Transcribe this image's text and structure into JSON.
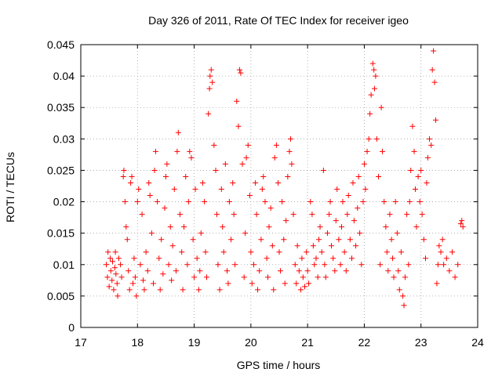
{
  "chart_data": {
    "type": "scatter",
    "title": "Day 326 of 2011, Rate Of TEC Index for receiver igeo",
    "xlabel": "GPS time / hours",
    "ylabel": "ROTI / TECUs",
    "xlim": [
      17,
      24
    ],
    "ylim": [
      0,
      0.045
    ],
    "xticks": [
      "17",
      "18",
      "19",
      "20",
      "21",
      "22",
      "23",
      "24"
    ],
    "yticks": [
      "0",
      "0.005",
      "0.01",
      "0.015",
      "0.02",
      "0.025",
      "0.03",
      "0.035",
      "0.04",
      "0.045"
    ],
    "grid": true,
    "marker": "plus",
    "series_color": "#ff0000",
    "points": [
      [
        17.45,
        0.01
      ],
      [
        17.47,
        0.008
      ],
      [
        17.48,
        0.012
      ],
      [
        17.5,
        0.0065
      ],
      [
        17.52,
        0.011
      ],
      [
        17.53,
        0.009
      ],
      [
        17.55,
        0.0075
      ],
      [
        17.56,
        0.0105
      ],
      [
        17.58,
        0.006
      ],
      [
        17.6,
        0.0095
      ],
      [
        17.61,
        0.012
      ],
      [
        17.62,
        0.0085
      ],
      [
        17.64,
        0.007
      ],
      [
        17.65,
        0.005
      ],
      [
        17.67,
        0.011
      ],
      [
        17.7,
        0.01
      ],
      [
        17.72,
        0.008
      ],
      [
        17.75,
        0.024
      ],
      [
        17.76,
        0.025
      ],
      [
        17.78,
        0.02
      ],
      [
        17.8,
        0.016
      ],
      [
        17.82,
        0.014
      ],
      [
        17.84,
        0.009
      ],
      [
        17.86,
        0.006
      ],
      [
        17.88,
        0.023
      ],
      [
        17.9,
        0.024
      ],
      [
        17.92,
        0.007
      ],
      [
        17.94,
        0.011
      ],
      [
        17.96,
        0.008
      ],
      [
        17.98,
        0.005
      ],
      [
        18.0,
        0.02
      ],
      [
        18.02,
        0.022
      ],
      [
        18.05,
        0.01
      ],
      [
        18.08,
        0.018
      ],
      [
        18.1,
        0.0075
      ],
      [
        18.12,
        0.006
      ],
      [
        18.15,
        0.012
      ],
      [
        18.18,
        0.009
      ],
      [
        18.2,
        0.023
      ],
      [
        18.22,
        0.021
      ],
      [
        18.25,
        0.015
      ],
      [
        18.28,
        0.007
      ],
      [
        18.3,
        0.025
      ],
      [
        18.32,
        0.028
      ],
      [
        18.35,
        0.02
      ],
      [
        18.38,
        0.011
      ],
      [
        18.4,
        0.006
      ],
      [
        18.42,
        0.014
      ],
      [
        18.45,
        0.0085
      ],
      [
        18.48,
        0.019
      ],
      [
        18.5,
        0.024
      ],
      [
        18.52,
        0.026
      ],
      [
        18.55,
        0.01
      ],
      [
        18.58,
        0.016
      ],
      [
        18.6,
        0.0075
      ],
      [
        18.62,
        0.013
      ],
      [
        18.65,
        0.022
      ],
      [
        18.68,
        0.009
      ],
      [
        18.7,
        0.028
      ],
      [
        18.72,
        0.031
      ],
      [
        18.75,
        0.018
      ],
      [
        18.78,
        0.012
      ],
      [
        18.8,
        0.006
      ],
      [
        18.82,
        0.016
      ],
      [
        18.85,
        0.024
      ],
      [
        18.88,
        0.01
      ],
      [
        18.9,
        0.02
      ],
      [
        18.92,
        0.028
      ],
      [
        18.95,
        0.027
      ],
      [
        18.98,
        0.014
      ],
      [
        19.0,
        0.008
      ],
      [
        19.02,
        0.022
      ],
      [
        19.05,
        0.011
      ],
      [
        19.08,
        0.006
      ],
      [
        19.1,
        0.009
      ],
      [
        19.12,
        0.015
      ],
      [
        19.15,
        0.023
      ],
      [
        19.18,
        0.02
      ],
      [
        19.2,
        0.012
      ],
      [
        19.22,
        0.008
      ],
      [
        19.25,
        0.034
      ],
      [
        19.27,
        0.038
      ],
      [
        19.28,
        0.04
      ],
      [
        19.3,
        0.041
      ],
      [
        19.32,
        0.039
      ],
      [
        19.35,
        0.029
      ],
      [
        19.38,
        0.025
      ],
      [
        19.4,
        0.018
      ],
      [
        19.42,
        0.01
      ],
      [
        19.45,
        0.006
      ],
      [
        19.48,
        0.022
      ],
      [
        19.5,
        0.016
      ],
      [
        19.52,
        0.012
      ],
      [
        19.55,
        0.026
      ],
      [
        19.58,
        0.009
      ],
      [
        19.6,
        0.007
      ],
      [
        19.62,
        0.02
      ],
      [
        19.65,
        0.014
      ],
      [
        19.68,
        0.023
      ],
      [
        19.7,
        0.018
      ],
      [
        19.72,
        0.01
      ],
      [
        19.75,
        0.036
      ],
      [
        19.78,
        0.032
      ],
      [
        19.8,
        0.041
      ],
      [
        19.82,
        0.0405
      ],
      [
        19.85,
        0.026
      ],
      [
        19.88,
        0.008
      ],
      [
        19.9,
        0.015
      ],
      [
        19.92,
        0.027
      ],
      [
        19.95,
        0.029
      ],
      [
        19.98,
        0.021
      ],
      [
        20.0,
        0.012
      ],
      [
        20.02,
        0.007
      ],
      [
        20.05,
        0.01
      ],
      [
        20.08,
        0.023
      ],
      [
        20.1,
        0.018
      ],
      [
        20.12,
        0.006
      ],
      [
        20.15,
        0.009
      ],
      [
        20.18,
        0.014
      ],
      [
        20.2,
        0.022
      ],
      [
        20.22,
        0.024
      ],
      [
        20.25,
        0.02
      ],
      [
        20.28,
        0.011
      ],
      [
        20.3,
        0.008
      ],
      [
        20.32,
        0.016
      ],
      [
        20.35,
        0.019
      ],
      [
        20.38,
        0.013
      ],
      [
        20.4,
        0.006
      ],
      [
        20.42,
        0.027
      ],
      [
        20.45,
        0.029
      ],
      [
        20.48,
        0.023
      ],
      [
        20.5,
        0.012
      ],
      [
        20.52,
        0.009
      ],
      [
        20.55,
        0.02
      ],
      [
        20.58,
        0.014
      ],
      [
        20.6,
        0.007
      ],
      [
        20.62,
        0.017
      ],
      [
        20.65,
        0.024
      ],
      [
        20.68,
        0.028
      ],
      [
        20.7,
        0.03
      ],
      [
        20.72,
        0.026
      ],
      [
        20.75,
        0.018
      ],
      [
        20.78,
        0.01
      ],
      [
        20.8,
        0.007
      ],
      [
        20.82,
        0.013
      ],
      [
        20.85,
        0.009
      ],
      [
        20.88,
        0.006
      ],
      [
        20.9,
        0.011
      ],
      [
        20.92,
        0.008
      ],
      [
        20.95,
        0.0065
      ],
      [
        20.98,
        0.012
      ],
      [
        21.0,
        0.009
      ],
      [
        21.02,
        0.007
      ],
      [
        21.05,
        0.02
      ],
      [
        21.08,
        0.018
      ],
      [
        21.1,
        0.013
      ],
      [
        21.12,
        0.01
      ],
      [
        21.15,
        0.011
      ],
      [
        21.18,
        0.008
      ],
      [
        21.2,
        0.014
      ],
      [
        21.22,
        0.016
      ],
      [
        21.25,
        0.012
      ],
      [
        21.28,
        0.025
      ],
      [
        21.3,
        0.01
      ],
      [
        21.32,
        0.008
      ],
      [
        21.35,
        0.015
      ],
      [
        21.38,
        0.018
      ],
      [
        21.4,
        0.02
      ],
      [
        21.42,
        0.013
      ],
      [
        21.45,
        0.011
      ],
      [
        21.48,
        0.009
      ],
      [
        21.5,
        0.017
      ],
      [
        21.52,
        0.022
      ],
      [
        21.55,
        0.014
      ],
      [
        21.58,
        0.01
      ],
      [
        21.6,
        0.016
      ],
      [
        21.62,
        0.02
      ],
      [
        21.65,
        0.012
      ],
      [
        21.68,
        0.009
      ],
      [
        21.7,
        0.018
      ],
      [
        21.72,
        0.021
      ],
      [
        21.75,
        0.014
      ],
      [
        21.78,
        0.011
      ],
      [
        21.8,
        0.023
      ],
      [
        21.82,
        0.017
      ],
      [
        21.85,
        0.013
      ],
      [
        21.88,
        0.019
      ],
      [
        21.9,
        0.024
      ],
      [
        21.92,
        0.015
      ],
      [
        21.95,
        0.01
      ],
      [
        21.98,
        0.02
      ],
      [
        22.0,
        0.026
      ],
      [
        22.02,
        0.022
      ],
      [
        22.05,
        0.028
      ],
      [
        22.08,
        0.03
      ],
      [
        22.1,
        0.034
      ],
      [
        22.12,
        0.037
      ],
      [
        22.15,
        0.042
      ],
      [
        22.17,
        0.041
      ],
      [
        22.18,
        0.038
      ],
      [
        22.2,
        0.04
      ],
      [
        22.22,
        0.03
      ],
      [
        22.25,
        0.024
      ],
      [
        22.28,
        0.01
      ],
      [
        22.3,
        0.035
      ],
      [
        22.32,
        0.028
      ],
      [
        22.35,
        0.02
      ],
      [
        22.38,
        0.016
      ],
      [
        22.4,
        0.012
      ],
      [
        22.42,
        0.009
      ],
      [
        22.45,
        0.018
      ],
      [
        22.48,
        0.014
      ],
      [
        22.5,
        0.011
      ],
      [
        22.52,
        0.008
      ],
      [
        22.55,
        0.02
      ],
      [
        22.58,
        0.015
      ],
      [
        22.6,
        0.009
      ],
      [
        22.62,
        0.006
      ],
      [
        22.65,
        0.012
      ],
      [
        22.68,
        0.005
      ],
      [
        22.7,
        0.0035
      ],
      [
        22.72,
        0.008
      ],
      [
        22.75,
        0.018
      ],
      [
        22.78,
        0.01
      ],
      [
        22.8,
        0.02
      ],
      [
        22.82,
        0.025
      ],
      [
        22.85,
        0.032
      ],
      [
        22.88,
        0.028
      ],
      [
        22.9,
        0.022
      ],
      [
        22.92,
        0.016
      ],
      [
        22.95,
        0.024
      ],
      [
        22.98,
        0.02
      ],
      [
        23.0,
        0.025
      ],
      [
        23.02,
        0.018
      ],
      [
        23.05,
        0.014
      ],
      [
        23.08,
        0.011
      ],
      [
        23.1,
        0.023
      ],
      [
        23.12,
        0.027
      ],
      [
        23.15,
        0.03
      ],
      [
        23.18,
        0.029
      ],
      [
        23.2,
        0.041
      ],
      [
        23.22,
        0.044
      ],
      [
        23.24,
        0.039
      ],
      [
        23.26,
        0.033
      ],
      [
        23.28,
        0.007
      ],
      [
        23.3,
        0.01
      ],
      [
        23.32,
        0.013
      ],
      [
        23.35,
        0.012
      ],
      [
        23.38,
        0.014
      ],
      [
        23.4,
        0.01
      ],
      [
        23.45,
        0.011
      ],
      [
        23.5,
        0.009
      ],
      [
        23.55,
        0.012
      ],
      [
        23.6,
        0.008
      ],
      [
        23.65,
        0.01
      ],
      [
        23.7,
        0.0165
      ],
      [
        23.72,
        0.017
      ],
      [
        23.74,
        0.016
      ]
    ]
  }
}
